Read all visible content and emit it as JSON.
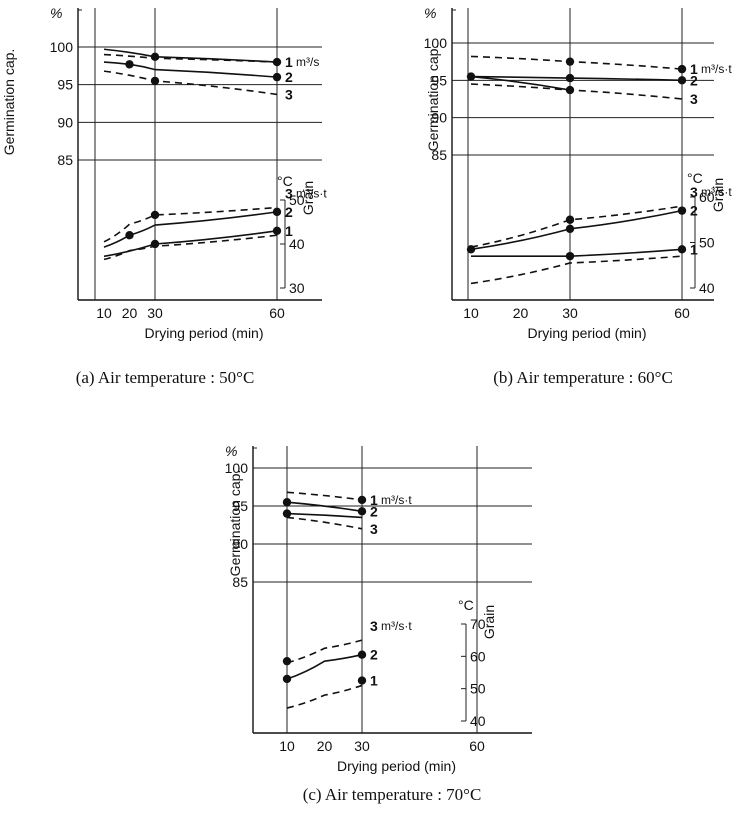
{
  "chart_data": [
    {
      "type": "line",
      "caption": "(a)  Air temperature : 50°C",
      "xlabel": "Drying period (min)",
      "x_ticks": [
        "10",
        "20",
        "30",
        "60"
      ],
      "germination": {
        "ylabel": "Germination cap.",
        "unit": "%",
        "y_ticks": [
          "100",
          "95",
          "90",
          "85"
        ],
        "ylim": [
          80,
          102
        ],
        "series": [
          {
            "name": "1",
            "unit": "m³/s",
            "style": "solid",
            "x": [
              10,
              30,
              60
            ],
            "y": [
              99.7,
              98.7,
              98.0
            ],
            "markers": [
              30,
              60
            ]
          },
          {
            "name": "2",
            "unit": "",
            "style": "solid",
            "x": [
              10,
              20,
              30,
              60
            ],
            "y": [
              98.0,
              97.7,
              97.0,
              96.0
            ],
            "markers": [
              20,
              60
            ]
          },
          {
            "name": "3",
            "unit": "",
            "style": "dashed",
            "x": [
              10,
              30,
              60
            ],
            "y": [
              96.8,
              95.5,
              93.7
            ],
            "markers": [
              30
            ]
          },
          {
            "name": "",
            "unit": "",
            "style": "dashed",
            "x": [
              10,
              30,
              60
            ],
            "y": [
              99.0,
              98.5,
              98.0
            ],
            "markers": []
          }
        ]
      },
      "grain": {
        "ylabel": "Grain",
        "unit": "°C",
        "y_ticks": [
          "50",
          "40",
          "30"
        ],
        "ylim": [
          30,
          50
        ],
        "series": [
          {
            "name": "3",
            "unit": "m³/s·t",
            "style": "dashed",
            "x": [
              10,
              20,
              30,
              60
            ],
            "y": [
              40.5,
              44.5,
              46.6,
              48.3
            ],
            "markers": [
              30
            ]
          },
          {
            "name": "2",
            "unit": "",
            "style": "solid",
            "x": [
              10,
              20,
              30,
              60
            ],
            "y": [
              39.3,
              42.0,
              44.3,
              47.3
            ],
            "markers": [
              20,
              60
            ]
          },
          {
            "name": "1",
            "unit": "",
            "style": "solid",
            "x": [
              10,
              30,
              60
            ],
            "y": [
              37.2,
              40.0,
              43.0
            ],
            "markers": [
              30,
              60
            ]
          },
          {
            "name": "",
            "unit": "",
            "style": "dashed",
            "x": [
              10,
              20,
              30,
              60
            ],
            "y": [
              36.5,
              38.5,
              39.5,
              42.0
            ],
            "markers": []
          }
        ]
      }
    },
    {
      "type": "line",
      "caption": "(b)  Air temperature : 60°C",
      "xlabel": "Drying period (min)",
      "x_ticks": [
        "10",
        "20",
        "30",
        "60"
      ],
      "germination": {
        "ylabel": "Germination cap.",
        "unit": "%",
        "y_ticks": [
          "100",
          "95",
          "90",
          "85"
        ],
        "ylim": [
          80,
          102
        ],
        "series": [
          {
            "name": "1",
            "unit": "m³/s·t",
            "style": "dashed",
            "x": [
              10,
              30,
              60
            ],
            "y": [
              98.2,
              97.5,
              96.5
            ],
            "markers": [
              30,
              60
            ]
          },
          {
            "name": "2",
            "unit": "",
            "style": "solid",
            "x": [
              10,
              30,
              60
            ],
            "y": [
              95.5,
              95.3,
              95.0
            ],
            "markers": [
              10,
              30,
              60
            ]
          },
          {
            "name": "3",
            "unit": "",
            "style": "dashed",
            "x": [
              10,
              30,
              60
            ],
            "y": [
              94.5,
              93.7,
              92.5
            ],
            "markers": []
          },
          {
            "name": "",
            "unit": "",
            "style": "solid",
            "x": [
              10,
              30
            ],
            "y": [
              95.5,
              93.7
            ],
            "markers": [
              30
            ]
          }
        ]
      },
      "grain": {
        "ylabel": "Grain",
        "unit": "°C",
        "y_ticks": [
          "60",
          "50",
          "40"
        ],
        "ylim": [
          40,
          60
        ],
        "series": [
          {
            "name": "3",
            "unit": "m³/s·t",
            "style": "dashed",
            "x": [
              10,
              30,
              60
            ],
            "y": [
              49.0,
              55.0,
              58.0
            ],
            "markers": [
              30
            ]
          },
          {
            "name": "2",
            "unit": "",
            "style": "solid",
            "x": [
              10,
              30,
              60
            ],
            "y": [
              48.5,
              53.0,
              57.0
            ],
            "markers": [
              10,
              30,
              60
            ]
          },
          {
            "name": "1",
            "unit": "",
            "style": "solid",
            "x": [
              10,
              30,
              60
            ],
            "y": [
              47.0,
              47.0,
              48.5
            ],
            "markers": [
              30,
              60
            ]
          },
          {
            "name": "",
            "unit": "",
            "style": "dashed",
            "x": [
              10,
              30,
              60
            ],
            "y": [
              41.0,
              45.5,
              47.0
            ],
            "markers": []
          }
        ]
      }
    },
    {
      "type": "line",
      "caption": "(c)  Air temperature : 70°C",
      "xlabel": "Drying period (min)",
      "x_ticks": [
        "10",
        "20",
        "30",
        "60"
      ],
      "germination": {
        "ylabel": "Germination cap.",
        "unit": "%",
        "y_ticks": [
          "100",
          "95",
          "90",
          "85"
        ],
        "ylim": [
          80,
          102
        ],
        "series": [
          {
            "name": "1",
            "unit": "m³/s·t",
            "style": "dashed",
            "x": [
              10,
              30
            ],
            "y": [
              96.8,
              95.8
            ],
            "markers": [
              30
            ]
          },
          {
            "name": "2",
            "unit": "",
            "style": "solid",
            "x": [
              10,
              30
            ],
            "y": [
              95.5,
              94.3
            ],
            "markers": [
              10,
              30
            ]
          },
          {
            "name": "3",
            "unit": "",
            "style": "dashed",
            "x": [
              10,
              30
            ],
            "y": [
              93.5,
              92.0
            ],
            "markers": []
          },
          {
            "name": "",
            "unit": "",
            "style": "solid",
            "x": [
              10,
              30
            ],
            "y": [
              94.0,
              93.5
            ],
            "markers": [
              10
            ]
          }
        ]
      },
      "grain": {
        "ylabel": "Grain",
        "unit": "°C",
        "y_ticks": [
          "70",
          "60",
          "50",
          "40"
        ],
        "ylim": [
          40,
          70
        ],
        "series": [
          {
            "name": "3",
            "unit": "m³/s·t",
            "style": "dashed",
            "x": [
              10,
              20,
              30
            ],
            "y": [
              58.0,
              62.5,
              65.0
            ],
            "markers": []
          },
          {
            "name": "2",
            "unit": "",
            "style": "solid",
            "x": [
              10,
              20,
              30
            ],
            "y": [
              53.0,
              58.5,
              60.5
            ],
            "markers": [
              10,
              30
            ]
          },
          {
            "name": "1",
            "unit": "",
            "style": "solid",
            "x": [
              30
            ],
            "y": [
              52.5
            ],
            "markers": [
              30
            ]
          },
          {
            "name": "",
            "unit": "",
            "style": "dashed",
            "x": [
              10,
              20,
              30
            ],
            "y": [
              44.0,
              48.0,
              51.0
            ],
            "markers": []
          },
          {
            "name": "",
            "unit": "",
            "style": "solid",
            "x": [
              10
            ],
            "y": [
              58.5
            ],
            "markers": [
              10
            ]
          }
        ]
      }
    }
  ]
}
